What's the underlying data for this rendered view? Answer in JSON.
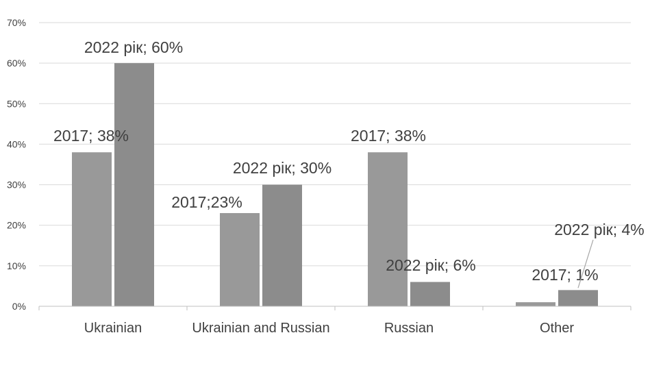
{
  "chart_data": {
    "type": "bar",
    "categories": [
      "Ukrainian",
      "Ukrainian and Russian",
      "Russian",
      "Other"
    ],
    "series": [
      {
        "values": [
          38,
          23,
          38,
          1
        ],
        "color": "#999999"
      },
      {
        "values": [
          60,
          30,
          6,
          4
        ],
        "color": "#8c8c8c"
      }
    ],
    "y_unit": "%",
    "ylim": [
      0,
      70
    ],
    "yticks": [
      "0%",
      "10%",
      "20%",
      "30%",
      "40%",
      "50%",
      "60%",
      "70%"
    ],
    "data_labels": [
      [
        "2017;  38%",
        "2022 рік; 60%"
      ],
      [
        "2017;23%",
        "2022 рік; 30%"
      ],
      [
        "2017; 38%",
        "2022 рік; 6%"
      ],
      [
        "2017; 1%",
        "2022 рік; 4%"
      ]
    ],
    "gridlines": true,
    "legend": "none"
  }
}
